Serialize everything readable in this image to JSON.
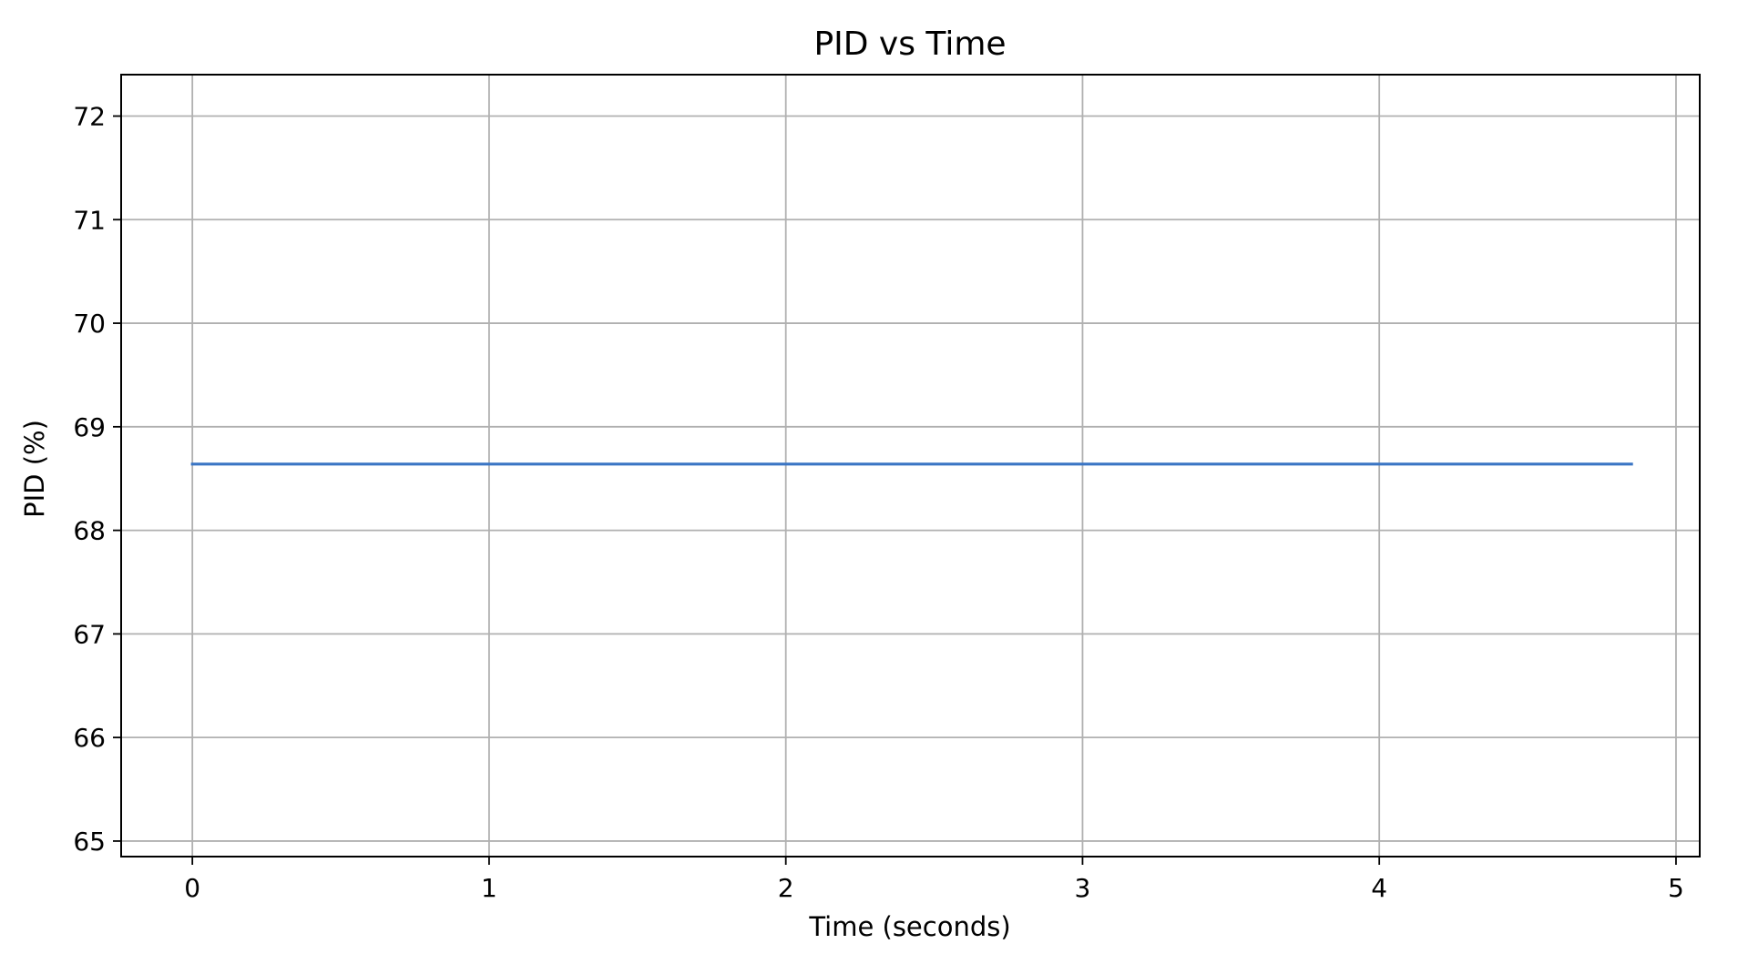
{
  "chart_data": {
    "type": "line",
    "title": "PID vs Time",
    "xlabel": "Time (seconds)",
    "ylabel": "PID (%)",
    "xlim": [
      -0.24,
      5.08
    ],
    "ylim": [
      64.85,
      72.4
    ],
    "xticks": [
      0,
      1,
      2,
      3,
      4,
      5
    ],
    "xtick_labels": [
      "0",
      "1",
      "2",
      "3",
      "4",
      "5"
    ],
    "yticks": [
      65,
      66,
      67,
      68,
      69,
      70,
      71,
      72
    ],
    "ytick_labels": [
      "65",
      "66",
      "67",
      "68",
      "69",
      "70",
      "71",
      "72"
    ],
    "grid": true,
    "legend": "none",
    "series": [
      {
        "color": "#3a75c4",
        "x": [
          0,
          4.85
        ],
        "y": [
          68.64,
          68.64
        ]
      }
    ]
  }
}
